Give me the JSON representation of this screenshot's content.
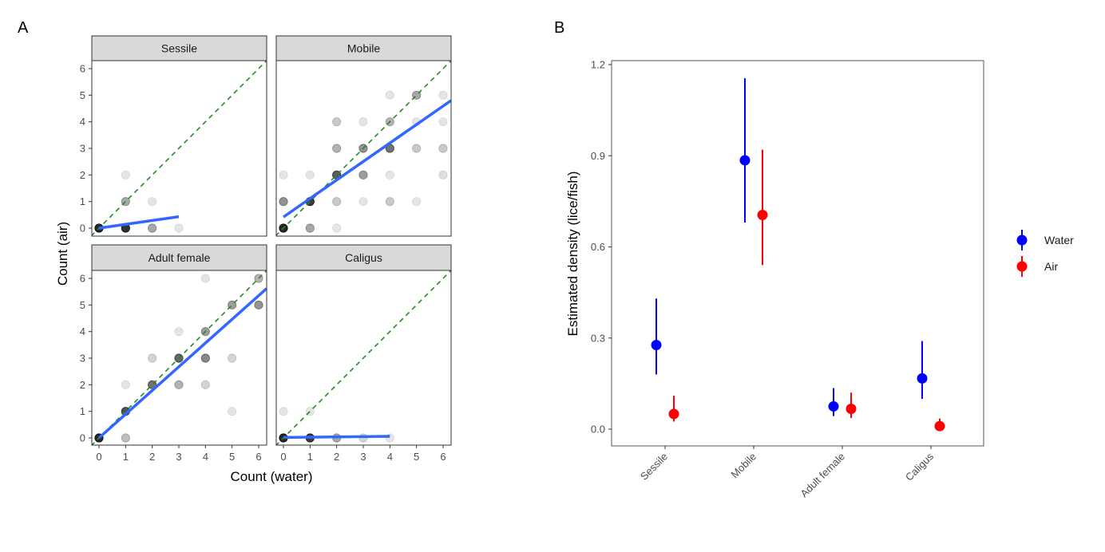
{
  "panel_labels": [
    "A",
    "B"
  ],
  "chart_data": [
    {
      "type": "scatter",
      "panel": "A",
      "xlabel": "Count (water)",
      "ylabel": "Count (air)",
      "xlim": [
        0,
        6
      ],
      "ylim": [
        0,
        6
      ],
      "xticks": [
        "0",
        "1",
        "2",
        "3",
        "4",
        "5",
        "6"
      ],
      "yticks": [
        "0",
        "1",
        "2",
        "3",
        "4",
        "5",
        "6"
      ],
      "grid": false,
      "reference_line": {
        "type": "y=x",
        "style": "dashed",
        "color": "#228B22"
      },
      "fit_color": "#3366FF",
      "point_color": "#000000",
      "facets": [
        {
          "name": "Sessile",
          "points": [
            [
              0,
              0,
              1
            ],
            [
              1,
              0,
              0.95
            ],
            [
              2,
              0,
              0.4
            ],
            [
              3,
              0,
              0.12
            ],
            [
              1,
              1,
              0.4
            ],
            [
              1,
              2,
              0.12
            ],
            [
              2,
              1,
              0.12
            ]
          ],
          "fit": [
            [
              0,
              0.0
            ],
            [
              3,
              0.43
            ]
          ]
        },
        {
          "name": "Mobile",
          "points": [
            [
              0,
              0,
              1
            ],
            [
              1,
              0,
              0.4
            ],
            [
              2,
              0,
              0.12
            ],
            [
              0,
              1,
              0.5
            ],
            [
              1,
              1,
              0.9
            ],
            [
              2,
              1,
              0.25
            ],
            [
              3,
              1,
              0.12
            ],
            [
              4,
              1,
              0.25
            ],
            [
              5,
              1,
              0.12
            ],
            [
              0,
              2,
              0.12
            ],
            [
              1,
              2,
              0.12
            ],
            [
              2,
              2,
              0.75
            ],
            [
              3,
              2,
              0.45
            ],
            [
              4,
              2,
              0.12
            ],
            [
              6,
              2,
              0.15
            ],
            [
              2,
              3,
              0.35
            ],
            [
              3,
              3,
              0.5
            ],
            [
              4,
              3,
              0.65
            ],
            [
              5,
              3,
              0.25
            ],
            [
              6,
              3,
              0.25
            ],
            [
              2,
              4,
              0.25
            ],
            [
              3,
              4,
              0.12
            ],
            [
              4,
              4,
              0.35
            ],
            [
              5,
              4,
              0.12
            ],
            [
              6,
              4,
              0.12
            ],
            [
              4,
              5,
              0.12
            ],
            [
              5,
              5,
              0.4
            ],
            [
              6,
              5,
              0.12
            ]
          ],
          "fit": [
            [
              0,
              0.42
            ],
            [
              6.3,
              4.8
            ]
          ]
        },
        {
          "name": "Adult female",
          "points": [
            [
              0,
              0,
              1
            ],
            [
              1,
              0,
              0.3
            ],
            [
              1,
              1,
              0.8
            ],
            [
              1,
              2,
              0.12
            ],
            [
              2,
              2,
              0.65
            ],
            [
              2,
              3,
              0.2
            ],
            [
              3,
              2,
              0.35
            ],
            [
              3,
              3,
              0.7
            ],
            [
              3,
              4,
              0.12
            ],
            [
              4,
              2,
              0.2
            ],
            [
              4,
              3,
              0.55
            ],
            [
              4,
              4,
              0.45
            ],
            [
              4,
              6,
              0.12
            ],
            [
              5,
              1,
              0.12
            ],
            [
              5,
              3,
              0.2
            ],
            [
              5,
              5,
              0.45
            ],
            [
              6,
              5,
              0.5
            ],
            [
              6,
              6,
              0.35
            ]
          ],
          "fit": [
            [
              0,
              0.0
            ],
            [
              6.3,
              5.62
            ]
          ]
        },
        {
          "name": "Caligus",
          "points": [
            [
              0,
              0,
              1
            ],
            [
              1,
              0,
              0.9
            ],
            [
              2,
              0,
              0.4
            ],
            [
              3,
              0,
              0.2
            ],
            [
              4,
              0,
              0.12
            ],
            [
              0,
              1,
              0.12
            ],
            [
              1,
              1,
              0.12
            ]
          ],
          "fit": [
            [
              0,
              0.02
            ],
            [
              4,
              0.06
            ]
          ]
        }
      ]
    },
    {
      "type": "errorbar",
      "panel": "B",
      "xlabel": "",
      "ylabel": "Estimated density (lice/fish)",
      "categories": [
        "Sessile",
        "Mobile",
        "Adult female",
        "Caligus"
      ],
      "ylim": [
        -0.06,
        1.215
      ],
      "yticks": [
        "0.0",
        "0.3",
        "0.6",
        "0.9",
        "1.2"
      ],
      "grid": false,
      "legend_position": "right",
      "series": [
        {
          "name": "Water",
          "color": "#0000FF",
          "values": [
            0.277,
            0.885,
            0.075,
            0.167
          ],
          "lower": [
            0.18,
            0.68,
            0.043,
            0.1
          ],
          "upper": [
            0.43,
            1.155,
            0.135,
            0.29
          ]
        },
        {
          "name": "Air",
          "color": "#FF0000",
          "values": [
            0.05,
            0.705,
            0.067,
            0.01
          ],
          "lower": [
            0.025,
            0.54,
            0.037,
            0.003
          ],
          "upper": [
            0.11,
            0.92,
            0.12,
            0.035
          ]
        }
      ]
    }
  ]
}
